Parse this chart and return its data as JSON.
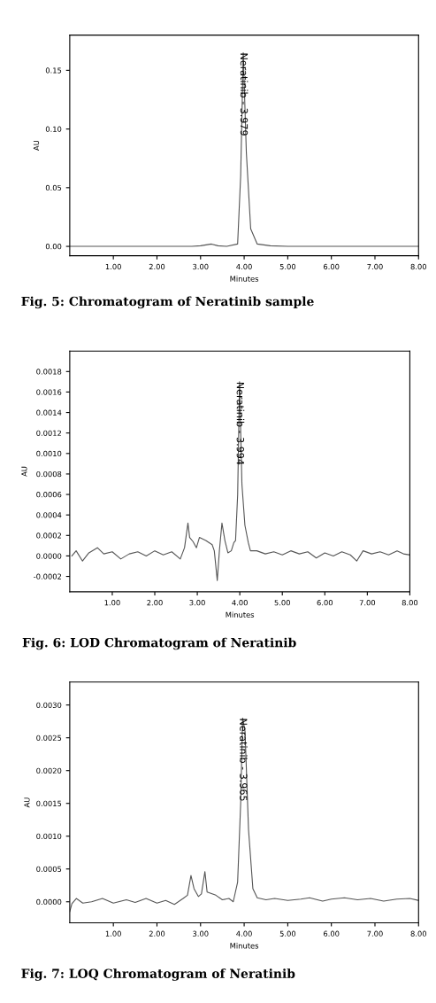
{
  "chart_data": [
    {
      "type": "line",
      "title": "Fig. 5: Chromatogram of Neratinib sample",
      "xlabel": "Minutes",
      "ylabel": "AU",
      "x": [
        0,
        2.8,
        3.0,
        3.25,
        3.4,
        3.6,
        3.85,
        3.92,
        3.979,
        4.05,
        4.15,
        4.3,
        4.6,
        5.0,
        8.0
      ],
      "series": [
        {
          "color": "#555555",
          "values": [
            0.0,
            0.0,
            0.0005,
            0.002,
            0.0005,
            0.0,
            0.002,
            0.06,
            0.165,
            0.08,
            0.015,
            0.002,
            0.0005,
            0.0,
            0.0
          ]
        }
      ],
      "xlim": [
        0,
        8
      ],
      "ylim": [
        -0.008,
        0.18
      ],
      "xticks": [
        {
          "value": 1,
          "label": "1.00"
        },
        {
          "value": 2,
          "label": "2.00"
        },
        {
          "value": 3,
          "label": "3.00"
        },
        {
          "value": 4,
          "label": "4.00"
        },
        {
          "value": 5,
          "label": "5.00"
        },
        {
          "value": 6,
          "label": "6.00"
        },
        {
          "value": 7,
          "label": "7.00"
        },
        {
          "value": 8,
          "label": "8.00"
        }
      ],
      "yticks": [
        {
          "value": 0,
          "label": "0.00"
        },
        {
          "value": 0.05,
          "label": "0.05"
        },
        {
          "value": 0.1,
          "label": "0.10"
        },
        {
          "value": 0.15,
          "label": "0.15"
        }
      ],
      "annotations": [
        {
          "text": "Neratinib - 3.979",
          "x": 3.979,
          "y": 0.165
        }
      ]
    },
    {
      "type": "line",
      "title": "Fig. 6: LOD Chromatogram of Neratinib",
      "xlabel": "Minutes",
      "ylabel": "AU",
      "x": [
        0.05,
        0.15,
        0.3,
        0.45,
        0.65,
        0.8,
        1.0,
        1.2,
        1.4,
        1.6,
        1.8,
        2.0,
        2.2,
        2.4,
        2.6,
        2.7,
        2.78,
        2.82,
        2.9,
        2.98,
        3.05,
        3.2,
        3.35,
        3.4,
        3.47,
        3.52,
        3.58,
        3.65,
        3.72,
        3.8,
        3.86,
        3.9,
        3.95,
        3.994,
        4.05,
        4.12,
        4.2,
        4.25,
        4.4,
        4.6,
        4.8,
        5.0,
        5.2,
        5.4,
        5.6,
        5.8,
        6.0,
        6.2,
        6.4,
        6.6,
        6.75,
        6.9,
        7.1,
        7.3,
        7.5,
        7.7,
        7.85,
        8.0
      ],
      "series": [
        {
          "color": "#555555",
          "values": [
            0.0,
            5e-05,
            -5e-05,
            3e-05,
            8e-05,
            2e-05,
            4e-05,
            -3e-05,
            2e-05,
            4e-05,
            0.0,
            5e-05,
            1e-05,
            4e-05,
            -3e-05,
            8e-05,
            0.00032,
            0.00018,
            0.00014,
            8e-05,
            0.00018,
            0.00015,
            0.00011,
            5e-05,
            -0.00024,
            5e-05,
            0.00032,
            0.00015,
            3e-05,
            5e-05,
            0.00013,
            0.00015,
            0.0006,
            0.0017,
            0.0007,
            0.0003,
            0.00013,
            5e-05,
            5e-05,
            2e-05,
            4e-05,
            1e-05,
            5e-05,
            2e-05,
            4e-05,
            -2e-05,
            3e-05,
            0.0,
            4e-05,
            1e-05,
            -5e-05,
            5e-05,
            2e-05,
            4e-05,
            1e-05,
            5e-05,
            2e-05,
            1e-05
          ]
        }
      ],
      "xlim": [
        0,
        8
      ],
      "ylim": [
        -0.00035,
        0.002
      ],
      "xticks": [
        {
          "value": 1,
          "label": "1.00"
        },
        {
          "value": 2,
          "label": "2.00"
        },
        {
          "value": 3,
          "label": "3.00"
        },
        {
          "value": 4,
          "label": "4.00"
        },
        {
          "value": 5,
          "label": "5.00"
        },
        {
          "value": 6,
          "label": "6.00"
        },
        {
          "value": 7,
          "label": "7.00"
        },
        {
          "value": 8,
          "label": "8.00"
        }
      ],
      "yticks": [
        {
          "value": -0.0002,
          "label": "-0.0002"
        },
        {
          "value": 0,
          "label": "0.0000"
        },
        {
          "value": 0.0002,
          "label": "0.0002"
        },
        {
          "value": 0.0004,
          "label": "0.0004"
        },
        {
          "value": 0.0006,
          "label": "0.0006"
        },
        {
          "value": 0.0008,
          "label": "0.0008"
        },
        {
          "value": 0.001,
          "label": "0.0010"
        },
        {
          "value": 0.0012,
          "label": "0.0012"
        },
        {
          "value": 0.0014,
          "label": "0.0014"
        },
        {
          "value": 0.0016,
          "label": "0.0016"
        },
        {
          "value": 0.0018,
          "label": "0.0018"
        }
      ],
      "annotations": [
        {
          "text": "Neratinib - 3.994",
          "x": 3.994,
          "y": 0.0017
        }
      ]
    },
    {
      "type": "line",
      "title": "Fig. 7: LOQ Chromatogram of Neratinib",
      "xlabel": "Minutes",
      "ylabel": "AU",
      "x": [
        0.0,
        0.05,
        0.15,
        0.3,
        0.5,
        0.75,
        1.0,
        1.3,
        1.5,
        1.75,
        2.0,
        2.2,
        2.4,
        2.6,
        2.7,
        2.78,
        2.85,
        2.95,
        3.02,
        3.1,
        3.15,
        3.35,
        3.5,
        3.65,
        3.75,
        3.85,
        3.92,
        3.965,
        4.02,
        4.1,
        4.2,
        4.3,
        4.5,
        4.7,
        5.0,
        5.3,
        5.5,
        5.8,
        6.0,
        6.3,
        6.6,
        6.9,
        7.2,
        7.5,
        7.8,
        8.0
      ],
      "series": [
        {
          "color": "#555555",
          "values": [
            -0.00015,
            -3e-05,
            5e-05,
            -2e-05,
            0.0,
            5e-05,
            -2e-05,
            3e-05,
            -1e-05,
            5e-05,
            -2e-05,
            2e-05,
            -4e-05,
            5e-05,
            0.0001,
            0.0004,
            0.0002,
            8e-05,
            0.00012,
            0.00046,
            0.00015,
            0.0001,
            3e-05,
            5e-05,
            0.0,
            0.0003,
            0.0015,
            0.0028,
            0.0026,
            0.0011,
            0.0002,
            6e-05,
            3e-05,
            5e-05,
            2e-05,
            4e-05,
            6e-05,
            1e-05,
            4e-05,
            6e-05,
            3e-05,
            5e-05,
            1e-05,
            4e-05,
            5e-05,
            2e-05
          ]
        }
      ],
      "xlim": [
        0,
        8
      ],
      "ylim": [
        -0.00032,
        0.00335
      ],
      "xticks": [
        {
          "value": 1,
          "label": "1.00"
        },
        {
          "value": 2,
          "label": "2.00"
        },
        {
          "value": 3,
          "label": "3.00"
        },
        {
          "value": 4,
          "label": "4.00"
        },
        {
          "value": 5,
          "label": "5.00"
        },
        {
          "value": 6,
          "label": "6.00"
        },
        {
          "value": 7,
          "label": "7.00"
        },
        {
          "value": 8,
          "label": "8.00"
        }
      ],
      "yticks": [
        {
          "value": 0,
          "label": "0.0000"
        },
        {
          "value": 0.0005,
          "label": "0.0005"
        },
        {
          "value": 0.001,
          "label": "0.0010"
        },
        {
          "value": 0.0015,
          "label": "0.0015"
        },
        {
          "value": 0.002,
          "label": "0.0020"
        },
        {
          "value": 0.0025,
          "label": "0.0025"
        },
        {
          "value": 0.003,
          "label": "0.0030"
        }
      ],
      "annotations": [
        {
          "text": "Neratinib - 3.965",
          "x": 3.965,
          "y": 0.0028
        }
      ]
    }
  ]
}
